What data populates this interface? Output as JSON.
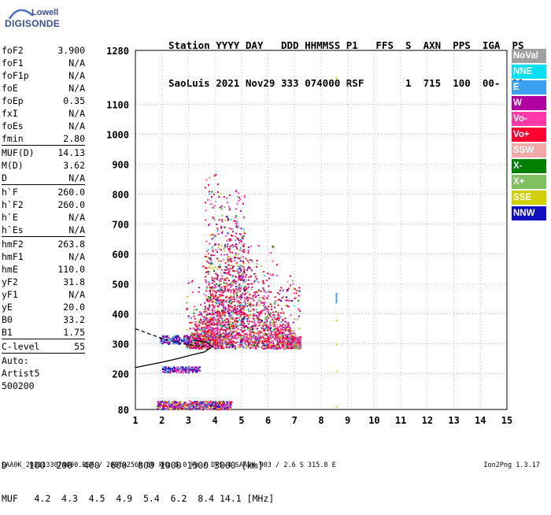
{
  "logo": {
    "line1": "Lowell",
    "line2": "DIGISONDE"
  },
  "header": {
    "row1": "Station YYYY DAY   DDD HHMMSS P1   FFS  S  AXN  PPS  IGA  PS",
    "row2": "SaoLuis 2021 Nov29 333 074000 RSF       1  715  100  00-  11"
  },
  "params": [
    {
      "name": "foF2",
      "value": "3.900"
    },
    {
      "name": "foF1",
      "value": "N/A"
    },
    {
      "name": "foF1p",
      "value": "N/A"
    },
    {
      "name": "foE",
      "value": "N/A"
    },
    {
      "name": "foEp",
      "value": "0.35"
    },
    {
      "name": "fxI",
      "value": "N/A"
    },
    {
      "name": "foEs",
      "value": "N/A"
    },
    {
      "name": "fmin",
      "value": "2.80"
    },
    {
      "name": "MUF(D)",
      "value": "14.13"
    },
    {
      "name": "M(D)",
      "value": "3.62"
    },
    {
      "name": "D",
      "value": "N/A"
    },
    {
      "name": "h`F",
      "value": "260.0"
    },
    {
      "name": "h`F2",
      "value": "260.0"
    },
    {
      "name": "h`E",
      "value": "N/A"
    },
    {
      "name": "h`Es",
      "value": "N/A"
    },
    {
      "name": "hmF2",
      "value": "263.8"
    },
    {
      "name": "hmF1",
      "value": "N/A"
    },
    {
      "name": "hmE",
      "value": "110.0"
    },
    {
      "name": "yF2",
      "value": "31.8"
    },
    {
      "name": "yF1",
      "value": "N/A"
    },
    {
      "name": "yE",
      "value": "20.0"
    },
    {
      "name": "B0",
      "value": "33.2"
    },
    {
      "name": "B1",
      "value": "1.75"
    },
    {
      "name": "C-level",
      "value": "55"
    }
  ],
  "autoscale": {
    "line1": "Auto:",
    "line2": "Artist5",
    "line3": "500200"
  },
  "muf_table": {
    "row1": "D    100  200  400  600  800 1000 1500 3000 [km]",
    "row2": "MUF   4.2  4.3  4.5  4.9  5.4  6.2  8.4 14.1 [MHz]"
  },
  "footer": {
    "left": "SAA0K_2021333074000.RSF / 280fx256h 50 kHz 5.0 km / DPS-4 SAA0K 903 / 2.6 S 315.8 E",
    "right": "Ion2Png 1.3.17"
  },
  "legend": [
    {
      "label": "NoVal",
      "color": "#a0a0a0"
    },
    {
      "label": "NNE",
      "color": "#00e0f0"
    },
    {
      "label": "E",
      "color": "#3ca0f0"
    },
    {
      "label": "W",
      "color": "#b000a0"
    },
    {
      "label": "Vo-",
      "color": "#ff3aa8"
    },
    {
      "label": "Vo+",
      "color": "#ff0030"
    },
    {
      "label": "SSW",
      "color": "#f0a8a8"
    },
    {
      "label": "X-",
      "color": "#008000"
    },
    {
      "label": "X+",
      "color": "#80c060"
    },
    {
      "label": "SSE",
      "color": "#d0d000"
    },
    {
      "label": "NNW",
      "color": "#1010c0"
    }
  ],
  "chart_data": {
    "type": "scatter",
    "xlim": [
      1,
      15
    ],
    "ylim": [
      80,
      1280
    ],
    "x_ticks": [
      "1",
      "2",
      "3",
      "4",
      "5",
      "6",
      "7",
      "8",
      "9",
      "10",
      "11",
      "12",
      "13",
      "14",
      "15"
    ],
    "y_ticks": [
      "80",
      "200",
      "300",
      "400",
      "500",
      "600",
      "700",
      "800",
      "900",
      "1000",
      "1100",
      "1280"
    ],
    "grid": true,
    "x": [
      2.0,
      2.2,
      2.6,
      3.0,
      3.2,
      3.4,
      3.6,
      3.8,
      4.0,
      4.2,
      4.4,
      4.6,
      4.8,
      5.0,
      5.2,
      5.4,
      5.6,
      5.8,
      6.0,
      6.4,
      6.8,
      7.2
    ],
    "y": [
      320,
      220,
      290,
      300,
      310,
      320,
      330,
      350,
      400,
      450,
      550,
      650,
      600,
      550,
      500,
      450,
      420,
      380,
      360,
      350,
      340,
      330
    ]
  }
}
